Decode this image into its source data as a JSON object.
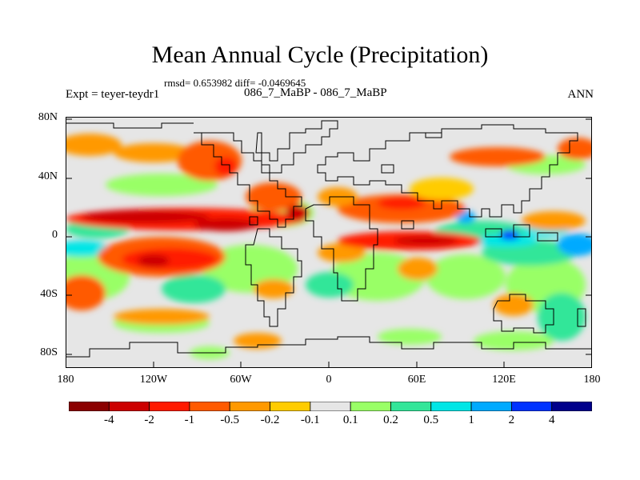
{
  "title": "Mean Annual Cycle (Precipitation)",
  "stats_line": "rmsd= 0.653982 diff= -0.0469645",
  "experiment": "Expt = teyer-teydr1",
  "case_label": "086_7_MaBP - 086_7_MaBP",
  "season": "ANN",
  "map": {
    "lat_ticks": [
      "80N",
      "40N",
      "0",
      "40S",
      "80S"
    ],
    "lon_ticks": [
      "180",
      "120W",
      "60W",
      "0",
      "60E",
      "120E",
      "180"
    ]
  },
  "colorbar": {
    "labels": [
      "-4",
      "-2",
      "-1",
      "-0.5",
      "-0.2",
      "-0.1",
      "0.1",
      "0.2",
      "0.5",
      "1",
      "2",
      "4"
    ],
    "colors": [
      "#8b0000",
      "#cc0000",
      "#ff1a00",
      "#ff5a00",
      "#ff9900",
      "#ffcc00",
      "#e6e6e6",
      "#99ff66",
      "#33e699",
      "#00e6e6",
      "#00aaff",
      "#0033ff",
      "#00008b"
    ]
  }
}
